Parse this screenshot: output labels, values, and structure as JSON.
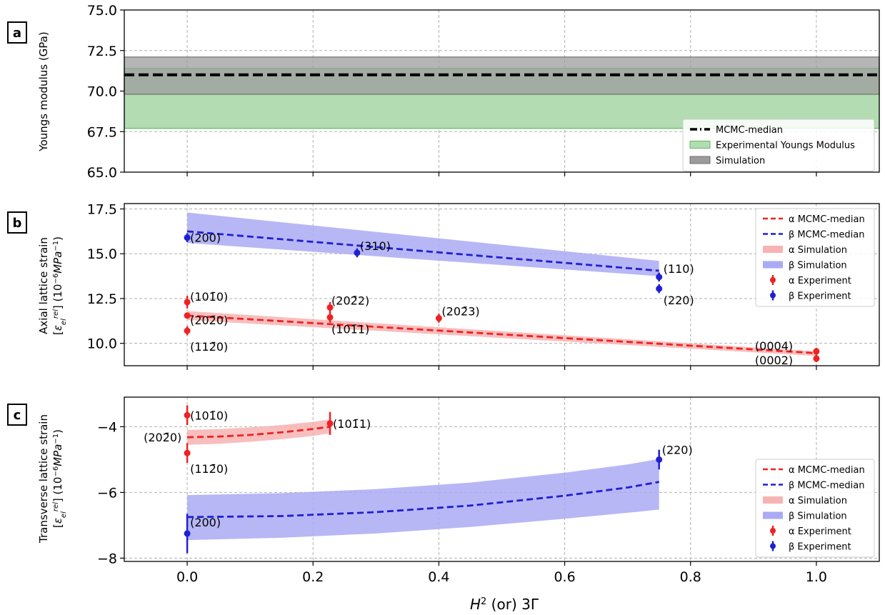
{
  "chart_data": [
    {
      "panel": "a",
      "type": "line",
      "ylabel": "Youngs modulus (GPa)",
      "ylim": [
        65.0,
        75.0
      ],
      "xlim": [
        -0.1,
        1.1
      ],
      "yticks": [
        65.0,
        67.5,
        70.0,
        72.5,
        75.0
      ],
      "grid": true,
      "median": 71.0,
      "bands": [
        {
          "name": "Experimental Youngs Modulus",
          "low": 67.7,
          "high": 71.4,
          "color": "#b3dcb3",
          "edge": "#5cb85c"
        },
        {
          "name": "Simulation",
          "low": 69.8,
          "high": 72.1,
          "color": "#9c9c9c",
          "edge": "#707070"
        }
      ],
      "legend": {
        "position": "bottom-right",
        "entries": [
          "MCMC-median",
          "Experimental Youngs Modulus",
          "Simulation"
        ]
      }
    },
    {
      "panel": "b",
      "type": "line",
      "ylabel": "Axial lattice strain",
      "ylim": [
        8.75,
        17.8
      ],
      "xlim": [
        -0.1,
        1.1
      ],
      "yticks": [
        10.0,
        12.5,
        15.0,
        17.5
      ],
      "grid": true,
      "series": [
        {
          "name": "β MCMC-median",
          "color": "#1f1fd4",
          "x": [
            0,
            0.75
          ],
          "y": [
            16.25,
            14.05
          ],
          "band": {
            "x": [
              0,
              0.75
            ],
            "low": [
              15.6,
              13.75
            ],
            "high": [
              17.3,
              14.6
            ],
            "color": "#aaaaf5"
          }
        },
        {
          "name": "α MCMC-median",
          "color": "#ee2222",
          "x": [
            0,
            1.0
          ],
          "y": [
            11.55,
            9.45
          ],
          "band": {
            "x": [
              0,
              1.0
            ],
            "low": [
              11.3,
              9.3
            ],
            "high": [
              11.8,
              9.55
            ],
            "color": "#f7b3b3"
          }
        }
      ],
      "points": [
        {
          "series": "β Experiment",
          "x": 0.0,
          "y": 15.9,
          "err": 0.25,
          "label": "(200)",
          "color": "#1f1fd4"
        },
        {
          "series": "β Experiment",
          "x": 0.27,
          "y": 15.05,
          "err": 0.25,
          "label": "(310)",
          "color": "#1f1fd4"
        },
        {
          "series": "β Experiment",
          "x": 0.75,
          "y": 13.7,
          "err": 0.25,
          "label": "(110)",
          "color": "#1f1fd4"
        },
        {
          "series": "β Experiment",
          "x": 0.75,
          "y": 13.05,
          "err": 0.25,
          "label": "(220)",
          "color": "#1f1fd4"
        },
        {
          "series": "α Experiment",
          "x": 0.0,
          "y": 12.3,
          "err": 0.35,
          "label": "(101̄0)",
          "color": "#ee2222"
        },
        {
          "series": "α Experiment",
          "x": 0.0,
          "y": 11.55,
          "err": 0.0,
          "label": "(202̄0)",
          "color": "#ee2222"
        },
        {
          "series": "α Experiment",
          "x": 0.0,
          "y": 10.7,
          "err": 0.25,
          "label": "(112̄0)",
          "color": "#ee2222"
        },
        {
          "series": "α Experiment",
          "x": 0.227,
          "y": 12.0,
          "err": 0.3,
          "label": "(202̄2)",
          "color": "#ee2222"
        },
        {
          "series": "α Experiment",
          "x": 0.227,
          "y": 11.45,
          "err": 0.3,
          "label": "(101̄1)",
          "color": "#ee2222"
        },
        {
          "series": "α Experiment",
          "x": 0.4,
          "y": 11.4,
          "err": 0.25,
          "label": "(202̄3)",
          "color": "#ee2222"
        },
        {
          "series": "α Experiment",
          "x": 1.0,
          "y": 9.55,
          "err": 0.2,
          "label": "(0004)",
          "color": "#ee2222"
        },
        {
          "series": "α Experiment",
          "x": 1.0,
          "y": 9.15,
          "err": 0.2,
          "label": "(0002)",
          "color": "#ee2222"
        }
      ],
      "legend": {
        "position": "top-right",
        "entries": [
          "α MCMC-median",
          "β MCMC-median",
          "α Simulation",
          "β Simulation",
          "α Experiment",
          "β Experiment"
        ]
      }
    },
    {
      "panel": "c",
      "type": "line",
      "ylabel": "Transverse lattice strain",
      "ylim": [
        -8.1,
        -3.1
      ],
      "xlim": [
        -0.1,
        1.1
      ],
      "yticks": [
        -8,
        -6,
        -4
      ],
      "grid": true,
      "series": [
        {
          "name": "α MCMC-median",
          "color": "#ee2222",
          "x": [
            0,
            0.05,
            0.1,
            0.15,
            0.2,
            0.227
          ],
          "y": [
            -4.32,
            -4.3,
            -4.25,
            -4.17,
            -4.07,
            -4.0
          ],
          "band": {
            "x": [
              0,
              0.05,
              0.1,
              0.15,
              0.2,
              0.227
            ],
            "low": [
              -4.55,
              -4.52,
              -4.46,
              -4.38,
              -4.28,
              -4.2
            ],
            "high": [
              -4.1,
              -4.07,
              -4.02,
              -3.95,
              -3.85,
              -3.78
            ],
            "color": "#f7b3b3"
          }
        },
        {
          "name": "β MCMC-median",
          "color": "#1f1fd4",
          "x": [
            0,
            0.15,
            0.3,
            0.45,
            0.6,
            0.7,
            0.75
          ],
          "y": [
            -6.75,
            -6.72,
            -6.6,
            -6.4,
            -6.1,
            -5.85,
            -5.68
          ],
          "band": {
            "x": [
              0,
              0.15,
              0.3,
              0.45,
              0.6,
              0.7,
              0.75
            ],
            "low": [
              -7.45,
              -7.38,
              -7.25,
              -7.05,
              -6.8,
              -6.62,
              -6.52
            ],
            "high": [
              -6.08,
              -6.02,
              -5.9,
              -5.7,
              -5.4,
              -5.15,
              -4.98
            ],
            "color": "#aaaaf5"
          }
        }
      ],
      "points": [
        {
          "series": "α Experiment",
          "x": 0.0,
          "y": -3.65,
          "err": 0.3,
          "label": "(101̄0)",
          "color": "#ee2222"
        },
        {
          "series": "α Experiment",
          "x": 0.0,
          "y": -4.8,
          "err": 0.3,
          "label": "(112̄0)",
          "color": "#ee2222"
        },
        {
          "series": "α Experiment",
          "x": 0.227,
          "y": -3.9,
          "err": 0.35,
          "label": "(101̄1)",
          "color": "#ee2222"
        },
        {
          "series": "β Experiment",
          "x": 0.75,
          "y": -5.0,
          "err": 0.3,
          "label": "(220)",
          "color": "#1f1fd4"
        },
        {
          "series": "β Experiment",
          "x": 0.0,
          "y": -7.25,
          "err": 0.6,
          "label": "(200)",
          "color": "#1f1fd4"
        }
      ],
      "extra_labels": [
        {
          "x": 0.0,
          "y": -4.32,
          "label": "(202̄0)"
        }
      ],
      "legend": {
        "position": "bottom-right",
        "entries": [
          "α MCMC-median",
          "β MCMC-median",
          "α Simulation",
          "β Simulation",
          "α Experiment",
          "β Experiment"
        ]
      }
    }
  ],
  "xaxis": {
    "label": "H² (or) 3Γ",
    "ticks": [
      0.0,
      0.2,
      0.4,
      0.6,
      0.8,
      1.0
    ]
  },
  "units": {
    "b": "[ε_el^rel] (10⁻⁶MPa⁻¹)",
    "c": "[ε_el^rel] (10⁻⁶MPa⁻¹)"
  },
  "panel_labels": [
    "a",
    "b",
    "c"
  ]
}
